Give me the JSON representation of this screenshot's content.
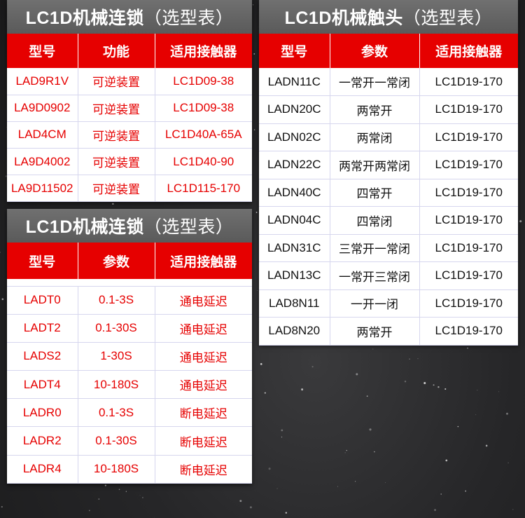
{
  "colors": {
    "header_red": "#e60000",
    "title_gray": "#666666",
    "text_red": "#e60000"
  },
  "interlock": {
    "title": "LC1D机械连锁",
    "title_suffix": "（选型表）",
    "headers": [
      "型号",
      "功能",
      "适用接触器"
    ],
    "rows": [
      [
        "LAD9R1V",
        "可逆装置",
        "LC1D09-38"
      ],
      [
        "LA9D0902",
        "可逆装置",
        "LC1D09-38"
      ],
      [
        "LAD4CM",
        "可逆装置",
        "LC1D40A-65A"
      ],
      [
        "LA9D4002",
        "可逆装置",
        "LC1D40-90"
      ],
      [
        "LA9D11502",
        "可逆装置",
        "LC1D115-170"
      ]
    ]
  },
  "timer": {
    "title": "LC1D机械连锁",
    "title_suffix": "（选型表）",
    "headers": [
      "型号",
      "参数",
      "适用接触器"
    ],
    "rows": [
      [
        "LADT0",
        "0.1-3S",
        "通电延迟"
      ],
      [
        "LADT2",
        "0.1-30S",
        "通电延迟"
      ],
      [
        "LADS2",
        "1-30S",
        "通电延迟"
      ],
      [
        "LADT4",
        "10-180S",
        "通电延迟"
      ],
      [
        "LADR0",
        "0.1-3S",
        "断电延迟"
      ],
      [
        "LADR2",
        "0.1-30S",
        "断电延迟"
      ],
      [
        "LADR4",
        "10-180S",
        "断电延迟"
      ]
    ]
  },
  "contacts": {
    "title": "LC1D机械触头",
    "title_suffix": "（选型表）",
    "headers": [
      "型号",
      "参数",
      "适用接触器"
    ],
    "rows": [
      [
        "LADN11C",
        "一常开一常闭",
        "LC1D19-170"
      ],
      [
        "LADN20C",
        "两常开",
        "LC1D19-170"
      ],
      [
        "LADN02C",
        "两常闭",
        "LC1D19-170"
      ],
      [
        "LADN22C",
        "两常开两常闭",
        "LC1D19-170"
      ],
      [
        "LADN40C",
        "四常开",
        "LC1D19-170"
      ],
      [
        "LADN04C",
        "四常闭",
        "LC1D19-170"
      ],
      [
        "LADN31C",
        "三常开一常闭",
        "LC1D19-170"
      ],
      [
        "LADN13C",
        "一常开三常闭",
        "LC1D19-170"
      ],
      [
        "LAD8N11",
        "一开一闭",
        "LC1D19-170"
      ],
      [
        "LAD8N20",
        "两常开",
        "LC1D19-170"
      ]
    ]
  }
}
